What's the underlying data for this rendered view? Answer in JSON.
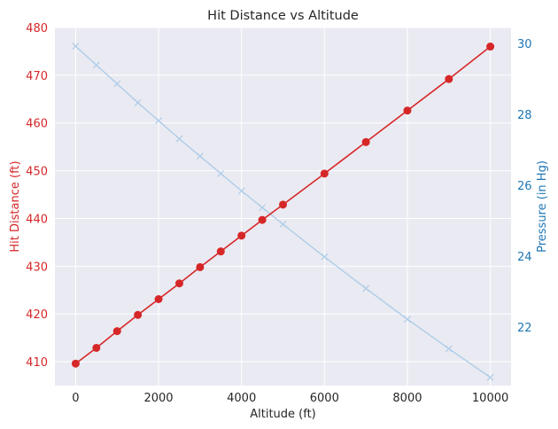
{
  "chart_data": {
    "type": "line",
    "title": "Hit Distance vs Altitude",
    "xlabel": "Altitude (ft)",
    "ylabel_left": "Hit Distance (ft)",
    "ylabel_right": "Pressure (in Hg)",
    "xlim": [
      -500,
      10500
    ],
    "ylim_left": [
      405,
      480
    ],
    "ylim_right": [
      20.35,
      30.45
    ],
    "x_ticks": [
      0,
      2000,
      4000,
      6000,
      8000,
      10000
    ],
    "x_tick_labels": [
      "0",
      "2000",
      "4000",
      "6000",
      "8000",
      "10000"
    ],
    "y_left_ticks": [
      410,
      420,
      430,
      440,
      450,
      460,
      470,
      480
    ],
    "y_left_tick_labels": [
      "410",
      "420",
      "430",
      "440",
      "450",
      "460",
      "470",
      "480"
    ],
    "y_right_ticks": [
      22,
      24,
      26,
      28,
      30
    ],
    "y_right_tick_labels": [
      "22",
      "24",
      "26",
      "28",
      "30"
    ],
    "grid": true,
    "background": "#eaeaf2",
    "series": [
      {
        "axis": "left",
        "color": "#d62728",
        "marker": "circle",
        "x": [
          0,
          500,
          1000,
          1500,
          2000,
          2500,
          3000,
          3500,
          4000,
          4500,
          5000,
          6000,
          7000,
          8000,
          9000,
          10000
        ],
        "values": [
          409.6,
          412.9,
          416.4,
          419.8,
          423.1,
          426.4,
          429.8,
          433.1,
          436.4,
          439.7,
          442.9,
          449.4,
          456.0,
          462.6,
          469.2,
          476.0
        ]
      },
      {
        "axis": "right",
        "color": "#aecde8",
        "marker": "x",
        "x": [
          0,
          500,
          1000,
          1500,
          2000,
          2500,
          3000,
          3500,
          4000,
          4500,
          5000,
          6000,
          7000,
          8000,
          9000,
          10000
        ],
        "values": [
          29.92,
          29.39,
          28.86,
          28.33,
          27.82,
          27.31,
          26.82,
          26.33,
          25.84,
          25.37,
          24.9,
          23.98,
          23.09,
          22.22,
          21.39,
          20.58
        ]
      }
    ]
  }
}
